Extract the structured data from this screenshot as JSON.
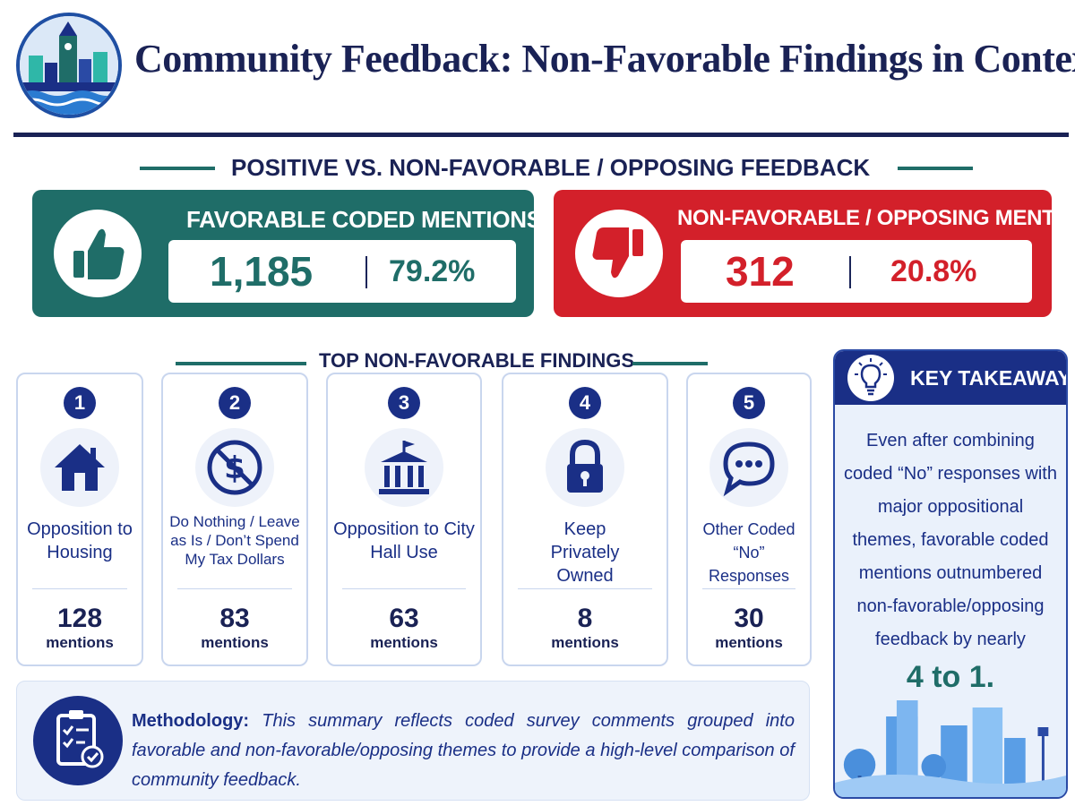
{
  "header": {
    "title": "Community Feedback: Non-Favorable Findings in Context",
    "logo_icon": "city-skyline-logo-icon"
  },
  "comparison": {
    "heading": "POSITIVE VS. NON-FAVORABLE / OPPOSING FEEDBACK",
    "favorable": {
      "label": "FAVORABLE CODED MENTIONS",
      "count": "1,185",
      "percent": "79.2%",
      "icon": "thumbs-up-icon",
      "color": "#1f6d68"
    },
    "non_favorable": {
      "label": "NON-FAVORABLE / OPPOSING MENTIONS",
      "count": "312",
      "percent": "20.8%",
      "icon": "thumbs-down-icon",
      "color": "#d3202a"
    }
  },
  "findings": {
    "heading": "TOP NON-FAVORABLE FINDINGS",
    "items": [
      {
        "rank": "1",
        "label": "Opposition to Housing",
        "count": "128",
        "unit": "mentions",
        "icon": "house-icon"
      },
      {
        "rank": "2",
        "label": "Do Nothing / Leave as Is / Don’t Spend My Tax Dollars",
        "count": "83",
        "unit": "mentions",
        "icon": "no-dollar-icon"
      },
      {
        "rank": "3",
        "label": "Opposition to City Hall Use",
        "count": "63",
        "unit": "mentions",
        "icon": "city-hall-icon"
      },
      {
        "rank": "4",
        "label": "Keep Privately Owned",
        "count": "8",
        "unit": "mentions",
        "icon": "padlock-icon"
      },
      {
        "rank": "5",
        "label": "Other Coded “No” Responses",
        "count": "30",
        "unit": "mentions",
        "icon": "speech-bubble-icon"
      }
    ]
  },
  "methodology": {
    "label": "Methodology:",
    "text": "This summary reflects coded survey comments grouped into favorable and non-favorable/opposing themes to provide a high-level comparison of community feedback.",
    "icon": "checklist-clipboard-icon"
  },
  "takeaway": {
    "title": "KEY TAKEAWAY",
    "body": "Even after combining coded “No” responses with major oppositional themes, favorable coded mentions outnumbered non-favorable/opposing feedback by nearly",
    "highlight": "4 to 1.",
    "icon": "lightbulb-icon"
  }
}
